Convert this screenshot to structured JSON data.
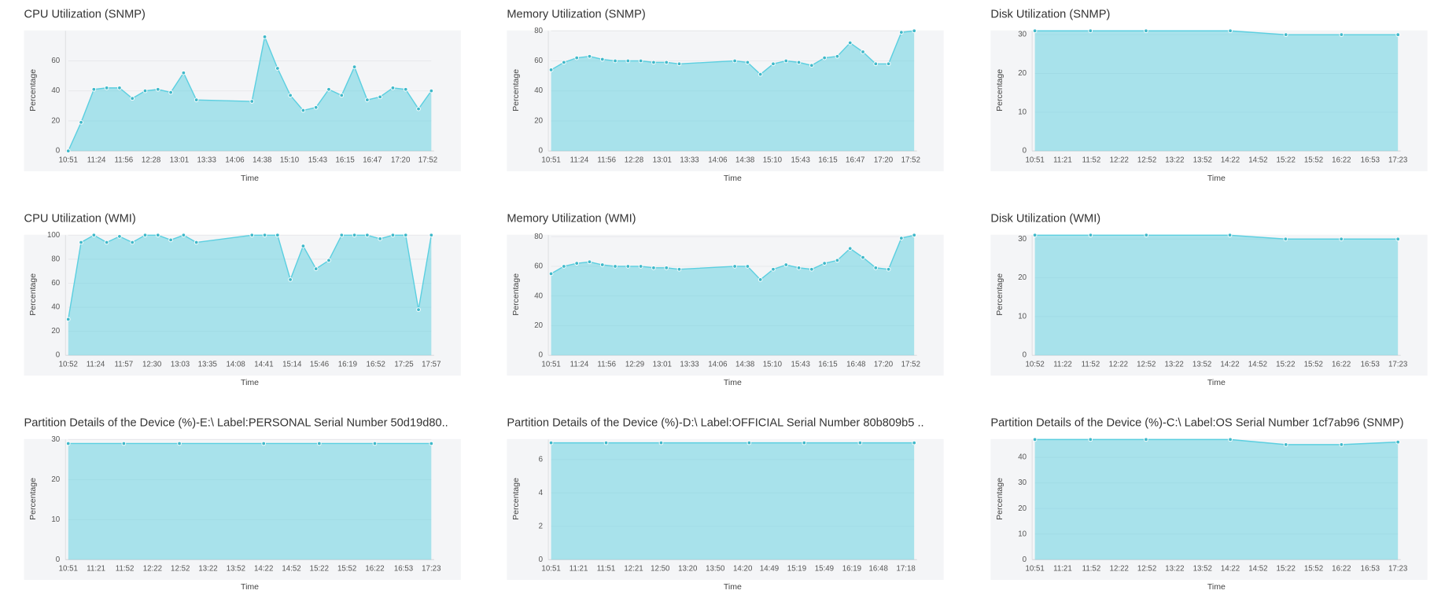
{
  "chart_data": [
    {
      "type": "area",
      "title": "CPU Utilization (SNMP)",
      "xlabel": "Time",
      "ylabel": "Percentage",
      "color": "#5bcfe0",
      "x": [
        "10:51",
        "11:06",
        "11:21",
        "11:36",
        "11:51",
        "12:06",
        "12:21",
        "12:36",
        "12:51",
        "13:06",
        "13:21",
        "14:26",
        "14:41",
        "14:56",
        "15:11",
        "15:26",
        "15:41",
        "15:56",
        "16:11",
        "16:26",
        "16:41",
        "16:56",
        "17:11",
        "17:26",
        "17:41",
        "17:56"
      ],
      "values": [
        0,
        19,
        41,
        42,
        42,
        35,
        40,
        41,
        39,
        52,
        34,
        33,
        76,
        55,
        37,
        27,
        29,
        41,
        37,
        56,
        34,
        36,
        42,
        41,
        28,
        40
      ],
      "xlim": [
        "10:51",
        "17:56"
      ],
      "xticks": [
        "10:51",
        "11:24",
        "11:56",
        "12:28",
        "13:01",
        "13:33",
        "14:06",
        "14:38",
        "15:10",
        "15:43",
        "16:15",
        "16:47",
        "17:20",
        "17:52"
      ],
      "ylim": [
        0,
        80
      ],
      "yticks": [
        0,
        20,
        40,
        60
      ],
      "grid": true
    },
    {
      "type": "area",
      "title": "Memory Utilization (SNMP)",
      "xlabel": "Time",
      "ylabel": "Percentage",
      "color": "#5bcfe0",
      "x": [
        "10:51",
        "11:06",
        "11:21",
        "11:36",
        "11:51",
        "12:06",
        "12:21",
        "12:36",
        "12:51",
        "13:06",
        "13:21",
        "14:26",
        "14:41",
        "14:56",
        "15:11",
        "15:26",
        "15:41",
        "15:56",
        "16:11",
        "16:26",
        "16:41",
        "16:56",
        "17:11",
        "17:26",
        "17:41",
        "17:56"
      ],
      "values": [
        54,
        59,
        62,
        63,
        61,
        60,
        60,
        60,
        59,
        59,
        58,
        60,
        59,
        51,
        58,
        60,
        59,
        57,
        62,
        63,
        72,
        66,
        58,
        58,
        79,
        80
      ],
      "xlim": [
        "10:51",
        "17:56"
      ],
      "xticks": [
        "10:51",
        "11:24",
        "11:56",
        "12:28",
        "13:01",
        "13:33",
        "14:06",
        "14:38",
        "15:10",
        "15:43",
        "16:15",
        "16:47",
        "17:20",
        "17:52"
      ],
      "ylim": [
        0,
        80
      ],
      "yticks": [
        0,
        20,
        40,
        60,
        80
      ],
      "grid": true
    },
    {
      "type": "area",
      "title": "Disk Utilization (SNMP)",
      "xlabel": "Time",
      "ylabel": "Percentage",
      "color": "#5bcfe0",
      "x": [
        "10:51",
        "11:51",
        "12:51",
        "14:22",
        "15:22",
        "16:22",
        "17:23"
      ],
      "values": [
        31,
        31,
        31,
        31,
        30,
        30,
        30
      ],
      "xlim": [
        "10:51",
        "17:23"
      ],
      "xticks": [
        "10:51",
        "11:21",
        "11:52",
        "12:22",
        "12:52",
        "13:22",
        "13:52",
        "14:22",
        "14:52",
        "15:22",
        "15:52",
        "16:22",
        "16:53",
        "17:23"
      ],
      "ylim": [
        0,
        31
      ],
      "yticks": [
        0,
        10,
        20,
        30
      ],
      "grid": true
    },
    {
      "type": "area",
      "title": "CPU Utilization (WMI)",
      "xlabel": "Time",
      "ylabel": "Percentage",
      "color": "#5bcfe0",
      "x": [
        "10:52",
        "11:07",
        "11:22",
        "11:37",
        "11:52",
        "12:07",
        "12:22",
        "12:37",
        "12:52",
        "13:07",
        "13:22",
        "14:27",
        "14:42",
        "14:57",
        "15:12",
        "15:27",
        "15:42",
        "15:57",
        "16:12",
        "16:27",
        "16:42",
        "16:57",
        "17:12",
        "17:27",
        "17:42",
        "17:57"
      ],
      "values": [
        30,
        94,
        100,
        94,
        99,
        94,
        100,
        100,
        96,
        100,
        94,
        100,
        100,
        100,
        63,
        91,
        72,
        79,
        100,
        100,
        100,
        97,
        100,
        100,
        38,
        100
      ],
      "xlim": [
        "10:52",
        "17:57"
      ],
      "xticks": [
        "10:52",
        "11:24",
        "11:57",
        "12:30",
        "13:03",
        "13:35",
        "14:08",
        "14:41",
        "15:14",
        "15:46",
        "16:19",
        "16:52",
        "17:25",
        "17:57"
      ],
      "ylim": [
        0,
        100
      ],
      "yticks": [
        0,
        20,
        40,
        60,
        80,
        100
      ],
      "grid": true
    },
    {
      "type": "area",
      "title": "Memory Utilization (WMI)",
      "xlabel": "Time",
      "ylabel": "Percentage",
      "color": "#5bcfe0",
      "x": [
        "10:51",
        "11:06",
        "11:21",
        "11:36",
        "11:51",
        "12:06",
        "12:21",
        "12:36",
        "12:51",
        "13:06",
        "13:21",
        "14:26",
        "14:41",
        "14:56",
        "15:11",
        "15:26",
        "15:41",
        "15:56",
        "16:11",
        "16:26",
        "16:41",
        "16:56",
        "17:11",
        "17:26",
        "17:41",
        "17:56"
      ],
      "values": [
        55,
        60,
        62,
        63,
        61,
        60,
        60,
        60,
        59,
        59,
        58,
        60,
        60,
        51,
        58,
        61,
        59,
        58,
        62,
        64,
        72,
        66,
        59,
        58,
        79,
        81
      ],
      "xlim": [
        "10:51",
        "17:56"
      ],
      "xticks": [
        "10:51",
        "11:24",
        "11:56",
        "12:29",
        "13:01",
        "13:33",
        "14:06",
        "14:38",
        "15:10",
        "15:43",
        "16:15",
        "16:48",
        "17:20",
        "17:52"
      ],
      "ylim": [
        0,
        81
      ],
      "yticks": [
        0,
        20,
        40,
        60,
        80
      ],
      "grid": true
    },
    {
      "type": "area",
      "title": "Disk Utilization (WMI)",
      "xlabel": "Time",
      "ylabel": "Percentage",
      "color": "#5bcfe0",
      "x": [
        "10:52",
        "11:52",
        "12:52",
        "14:22",
        "15:22",
        "16:22",
        "17:23"
      ],
      "values": [
        31,
        31,
        31,
        31,
        30,
        30,
        30
      ],
      "xlim": [
        "10:52",
        "17:23"
      ],
      "xticks": [
        "10:52",
        "11:22",
        "11:52",
        "12:22",
        "12:52",
        "13:22",
        "13:52",
        "14:22",
        "14:52",
        "15:22",
        "15:52",
        "16:22",
        "16:53",
        "17:23"
      ],
      "ylim": [
        0,
        31
      ],
      "yticks": [
        0,
        10,
        20,
        30
      ],
      "grid": true
    },
    {
      "type": "area",
      "title": "Partition Details of the Device (%)-E:\\ Label:PERSONAL Serial Number 50d19d80..",
      "xlabel": "Time",
      "ylabel": "Percentage",
      "color": "#5bcfe0",
      "x": [
        "10:51",
        "11:51",
        "12:51",
        "14:22",
        "15:22",
        "16:22",
        "17:23"
      ],
      "values": [
        29,
        29,
        29,
        29,
        29,
        29,
        29
      ],
      "xlim": [
        "10:51",
        "17:23"
      ],
      "xticks": [
        "10:51",
        "11:21",
        "11:52",
        "12:22",
        "12:52",
        "13:22",
        "13:52",
        "14:22",
        "14:52",
        "15:22",
        "15:52",
        "16:22",
        "16:53",
        "17:23"
      ],
      "ylim": [
        0,
        30
      ],
      "yticks": [
        0,
        10,
        20,
        30
      ],
      "grid": true
    },
    {
      "type": "area",
      "title": "Partition Details of the Device (%)-D:\\ Label:OFFICIAL Serial Number 80b809b5 ..",
      "xlabel": "Time",
      "ylabel": "Percentage",
      "color": "#5bcfe0",
      "x": [
        "10:51",
        "11:51",
        "12:51",
        "14:27",
        "15:27",
        "16:28",
        "17:27"
      ],
      "values": [
        7,
        7,
        7,
        7,
        7,
        7,
        7
      ],
      "xlim": [
        "10:51",
        "17:27"
      ],
      "xticks": [
        "10:51",
        "11:21",
        "11:51",
        "12:21",
        "12:50",
        "13:20",
        "13:50",
        "14:20",
        "14:49",
        "15:19",
        "15:49",
        "16:19",
        "16:48",
        "17:18"
      ],
      "ylim": [
        0,
        7.2
      ],
      "yticks": [
        0,
        2,
        4,
        6
      ],
      "grid": true
    },
    {
      "type": "area",
      "title": "Partition Details of the Device (%)-C:\\ Label:OS Serial Number 1cf7ab96 (SNMP)",
      "xlabel": "Time",
      "ylabel": "Percentage",
      "color": "#5bcfe0",
      "x": [
        "10:51",
        "11:51",
        "12:51",
        "14:22",
        "15:22",
        "16:22",
        "17:23"
      ],
      "values": [
        47,
        47,
        47,
        47,
        45,
        45,
        46
      ],
      "xlim": [
        "10:51",
        "17:23"
      ],
      "xticks": [
        "10:51",
        "11:21",
        "11:52",
        "12:22",
        "12:52",
        "13:22",
        "13:52",
        "14:22",
        "14:52",
        "15:22",
        "15:52",
        "16:22",
        "16:53",
        "17:23"
      ],
      "ylim": [
        0,
        47
      ],
      "yticks": [
        0,
        10,
        20,
        30,
        40
      ],
      "grid": true
    }
  ]
}
